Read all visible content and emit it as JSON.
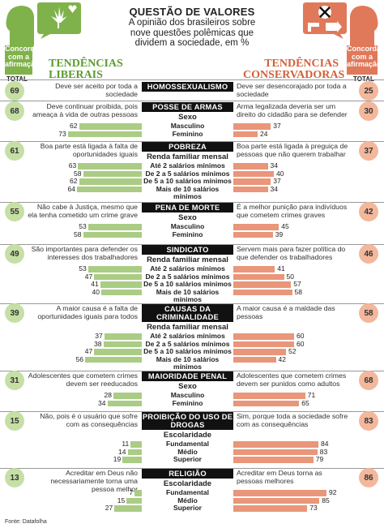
{
  "header": {
    "title": "QUESTÃO DE VALORES",
    "subtitle": "A opinião dos brasileiros sobre nove questões polêmicas que dividem a sociedade, em %"
  },
  "left": {
    "tag": "Concordam com a afirmação",
    "title": "TENDÊNCIAS LIBERAIS",
    "total_label": "TOTAL",
    "color": "#7fb24a"
  },
  "right": {
    "tag": "Concordam com a afirmação",
    "title": "TENDÊNCIAS CONSERVADORAS",
    "total_label": "TOTAL",
    "color": "#e0795a"
  },
  "source": "Fonte: Datafolha",
  "chart_data": {
    "type": "bar",
    "questions": [
      {
        "title": "HOMOSSEXUALISMO",
        "left_total": 69,
        "right_total": 25,
        "left_text": "Deve ser aceito por toda a sociedade",
        "right_text": "Deve ser desencorajado por toda a sociedade",
        "groups": []
      },
      {
        "title": "POSSE DE ARMAS",
        "left_total": 68,
        "right_total": 30,
        "left_text": "Deve continuar proibida, pois ameaça à vida de outras pessoas",
        "right_text": "Arma legalizada deveria ser um direito do cidadão para se defender",
        "groups": [
          {
            "label": "Sexo",
            "categories": [
              "Masculino",
              "Feminino"
            ],
            "left": [
              62,
              73
            ],
            "right": [
              37,
              24
            ]
          }
        ]
      },
      {
        "title": "POBREZA",
        "left_total": 61,
        "right_total": 37,
        "left_text": "Boa parte está ligada à falta de oportunidades iguais",
        "right_text": "Boa parte está ligada à preguiça de pessoas que não querem trabalhar",
        "groups": [
          {
            "label": "Renda familiar mensal",
            "categories": [
              "Até 2 salários mínimos",
              "De 2 a 5 salários mínimos",
              "De 5 a 10 salários mínimos",
              "Mais de 10 salários mínimos"
            ],
            "left": [
              63,
              58,
              62,
              64
            ],
            "right": [
              34,
              40,
              37,
              34
            ]
          }
        ]
      },
      {
        "title": "PENA DE MORTE",
        "left_total": 55,
        "right_total": 42,
        "left_text": "Não cabe à Justiça, mesmo que ela tenha cometido um crime grave",
        "right_text": "É a melhor punição para indivíduos que cometem crimes graves",
        "groups": [
          {
            "label": "Sexo",
            "categories": [
              "Masculino",
              "Feminino"
            ],
            "left": [
              53,
              58
            ],
            "right": [
              45,
              39
            ]
          }
        ]
      },
      {
        "title": "SINDICATO",
        "left_total": 49,
        "right_total": 46,
        "left_text": "São importantes para defender os interesses dos trabalhadores",
        "right_text": "Servem mais para fazer política do que defender os trabalhadores",
        "groups": [
          {
            "label": "Renda familiar mensal",
            "categories": [
              "Até 2 salários mínimos",
              "De 2 a 5 salários mínimos",
              "De 5 a 10 salários mínimos",
              "Mais de 10 salários mínimos"
            ],
            "left": [
              53,
              47,
              41,
              40
            ],
            "right": [
              41,
              50,
              57,
              58
            ]
          }
        ]
      },
      {
        "title": "CAUSAS DA CRIMINALIDADE",
        "left_total": 39,
        "right_total": 58,
        "left_text": "A maior causa é a falta de oportunidades iguais para todos",
        "right_text": "A maior causa é a maldade das pessoas",
        "groups": [
          {
            "label": "Renda familiar mensal",
            "categories": [
              "Até 2 salários mínimos",
              "De 2 a 5 salários mínimos",
              "De 5 a 10 salários mínimos",
              "Mais de 10 salários mínimos"
            ],
            "left": [
              37,
              38,
              47,
              56
            ],
            "right": [
              60,
              60,
              52,
              42
            ]
          }
        ]
      },
      {
        "title": "MAIORIDADE PENAL",
        "left_total": 31,
        "right_total": 68,
        "left_text": "Adolescentes que cometem crimes devem ser reeducados",
        "right_text": "Adolescentes que cometem crimes devem ser punidos como adultos",
        "groups": [
          {
            "label": "Sexo",
            "categories": [
              "Masculino",
              "Feminino"
            ],
            "left": [
              28,
              34
            ],
            "right": [
              71,
              65
            ]
          }
        ]
      },
      {
        "title": "PROIBIÇÃO DO USO DE DROGAS",
        "left_total": 15,
        "right_total": 83,
        "left_text": "Não, pois é o usuário que sofre com as consequências",
        "right_text": "Sim, porque toda a sociedade sofre com as consequências",
        "groups": [
          {
            "label": "Escolaridade",
            "categories": [
              "Fundamental",
              "Médio",
              "Superior"
            ],
            "left": [
              11,
              14,
              19
            ],
            "right": [
              84,
              83,
              79
            ]
          }
        ]
      },
      {
        "title": "RELIGIÃO",
        "left_total": 13,
        "right_total": 86,
        "left_text": "Acreditar em Deus não necessariamente torna uma pessoa melhor",
        "right_text": "Acreditar em Deus torna as pessoas melhores",
        "groups": [
          {
            "label": "Escolaridade",
            "categories": [
              "Fundamental",
              "Médio",
              "Superior"
            ],
            "left": [
              7,
              15,
              27
            ],
            "right": [
              92,
              85,
              73
            ]
          }
        ]
      }
    ]
  }
}
